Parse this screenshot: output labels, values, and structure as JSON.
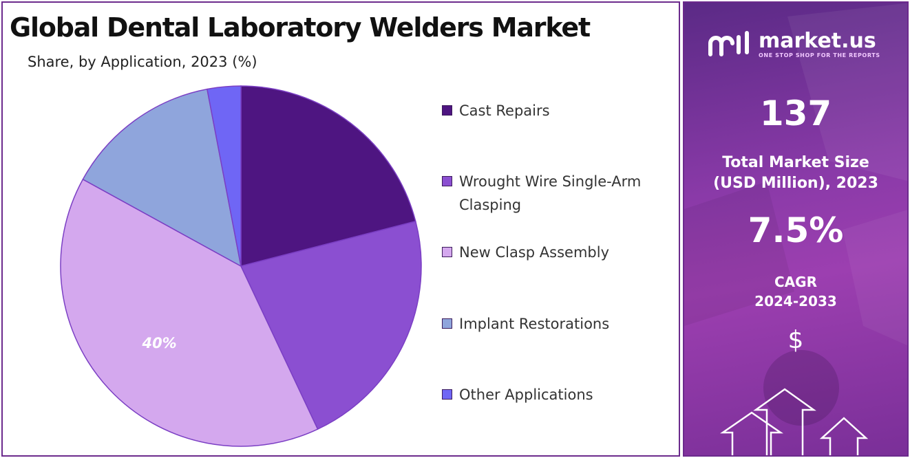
{
  "title": "Global Dental Laboratory Welders Market",
  "subtitle": "Share, by Application, 2023 (%)",
  "chart_data": {
    "type": "pie",
    "title": "Global Dental Laboratory Welders Market",
    "subtitle": "Share, by Application, 2023 (%)",
    "categories": [
      "Cast Repairs",
      "Wrought Wire Single-Arm Clasping",
      "New Clasp Assembly",
      "Implant Restorations",
      "Other Applications"
    ],
    "values": [
      21,
      22,
      40,
      14,
      3
    ],
    "colors": [
      "#4e1581",
      "#8b4fd1",
      "#d4a8ee",
      "#8fa5dc",
      "#6f66f5"
    ],
    "data_labels": [
      {
        "category": "New Clasp Assembly",
        "text": "40%"
      }
    ],
    "legend_position": "right"
  },
  "side_panel": {
    "logo_name": "market.us",
    "logo_tagline": "ONE STOP SHOP FOR THE REPORTS",
    "market_size_value": "137",
    "market_size_label_line1": "Total Market Size",
    "market_size_label_line2": "(USD Million), 2023",
    "cagr_value": "7.5%",
    "cagr_label_line1": "CAGR",
    "cagr_label_line2": "2024-2033",
    "currency_symbol": "$",
    "logo_icon": "market-us-logo-icon",
    "arrow_icon": "up-arrow-icon"
  }
}
